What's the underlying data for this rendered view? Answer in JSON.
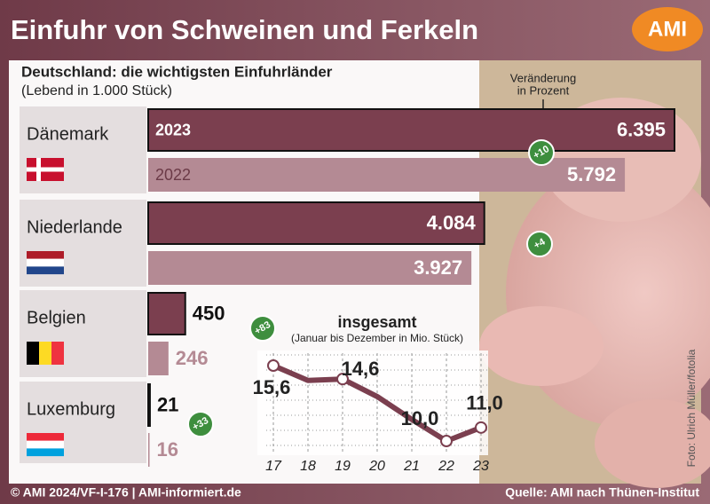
{
  "header": {
    "title": "Einfuhr von Schweinen und Ferkeln",
    "logo": "AMI"
  },
  "chart_data": [
    {
      "type": "bar",
      "title": "Deutschland: die wichtigsten Einfuhrländer",
      "subtitle": "(Lebend in 1.000 Stück)",
      "annotation": [
        "Veränderung",
        "in Prozent"
      ],
      "categories": [
        "Dänemark",
        "Niederlande",
        "Belgien",
        "Luxemburg"
      ],
      "series": [
        {
          "name": "2023",
          "color": "#7b3f4f",
          "values": [
            6395,
            4084,
            450,
            21
          ],
          "value_labels": [
            "6.395",
            "4.084",
            "450",
            "21"
          ]
        },
        {
          "name": "2022",
          "color": "#b48a94",
          "values": [
            5792,
            3927,
            246,
            16
          ],
          "value_labels": [
            "5.792",
            "3.927",
            "246",
            "16"
          ]
        }
      ],
      "change_labels": [
        "+10",
        "+4",
        "+83",
        "+33"
      ]
    },
    {
      "type": "line",
      "title": "insgesamt",
      "subtitle": "(Januar bis Dezember in Mio. Stück)",
      "categories": [
        "17",
        "18",
        "19",
        "20",
        "21",
        "22",
        "23"
      ],
      "series": [
        {
          "color": "#7b3f4f",
          "values": [
            15.6,
            14.5,
            14.6,
            13.3,
            11.6,
            10.0,
            11.0
          ],
          "value_labels": [
            "15,6",
            null,
            "14,6",
            null,
            null,
            "10,0",
            "11,0"
          ]
        }
      ]
    }
  ],
  "photo_credit": "Foto: Ulrich Müller/fotolia",
  "footer": {
    "left": "© AMI 2024/VF-I-176 | AMI-informiert.de",
    "right": "Quelle: AMI nach Thünen-Institut"
  }
}
